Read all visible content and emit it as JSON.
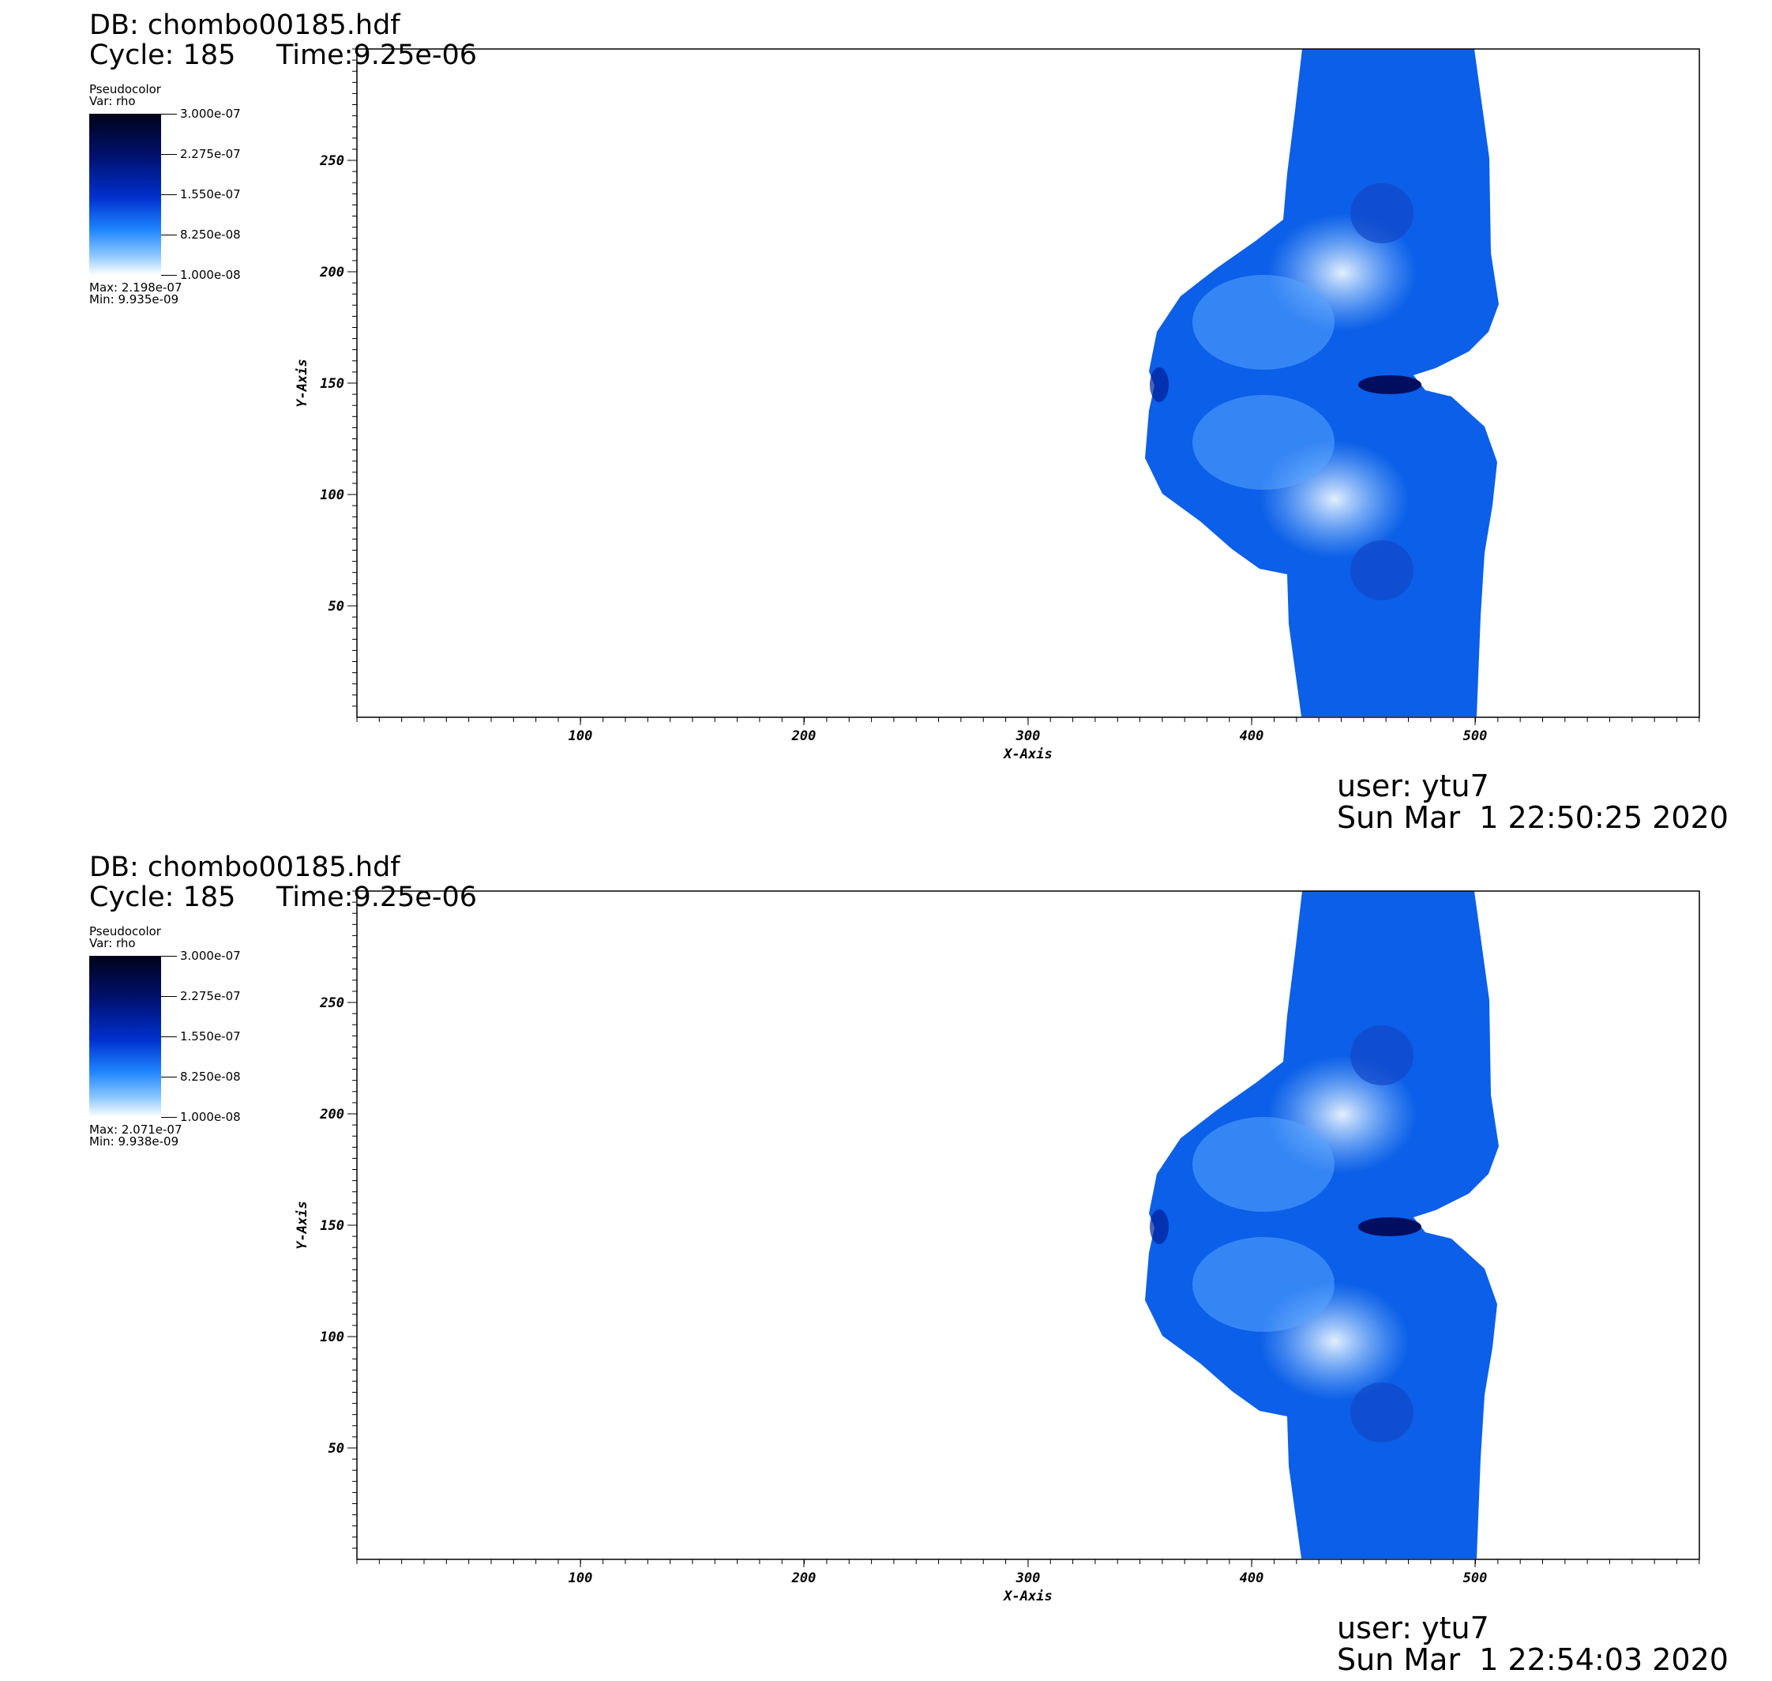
{
  "plots": [
    {
      "db_label": "DB: chombo00185.hdf",
      "cycle_label": "Cycle: 185",
      "time_label": "Time:9.25e-06",
      "legend": {
        "plot_type": "Pseudocolor",
        "var_label": "Var: rho",
        "ticks": [
          "3.000e-07",
          "2.275e-07",
          "1.550e-07",
          "8.250e-08",
          "1.000e-08"
        ],
        "max_label": "Max:  2.198e-07",
        "min_label": "Min:  9.935e-09"
      },
      "user_label": "user: ytu7",
      "date_label": "Sun Mar  1 22:50:25 2020"
    },
    {
      "db_label": "DB: chombo00185.hdf",
      "cycle_label": "Cycle: 185",
      "time_label": "Time:9.25e-06",
      "legend": {
        "plot_type": "Pseudocolor",
        "var_label": "Var: rho",
        "ticks": [
          "3.000e-07",
          "2.275e-07",
          "1.550e-07",
          "8.250e-08",
          "1.000e-08"
        ],
        "max_label": "Max:  2.071e-07",
        "min_label": "Min:  9.938e-09"
      },
      "user_label": "user: ytu7",
      "date_label": "Sun Mar  1 22:54:03 2020"
    }
  ],
  "axes": {
    "x_label": "X-Axis",
    "y_label": "Y-Axis",
    "x_range": [
      0,
      600
    ],
    "y_range": [
      0,
      300
    ],
    "x_ticks": [
      "100",
      "200",
      "300",
      "400",
      "500"
    ],
    "y_ticks": [
      "50",
      "100",
      "150",
      "200",
      "250"
    ]
  },
  "colors": {
    "field_blue": "#0a5ee8",
    "field_dark": "#00108a",
    "field_light": "#e6f1ff"
  }
}
